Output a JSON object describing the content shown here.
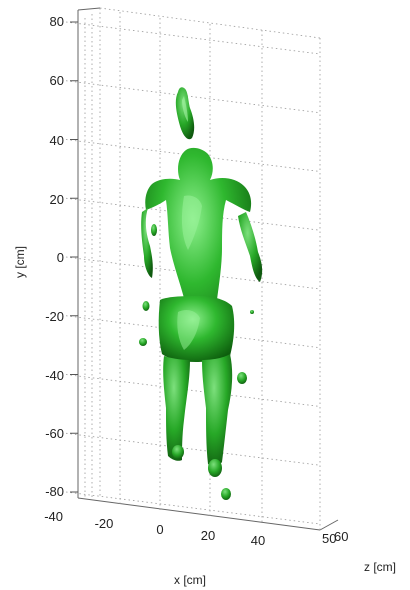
{
  "chart_data": {
    "type": "scatter",
    "subtype": "3d-isosurface",
    "title": "",
    "ylabel": "y [cm]",
    "xlabel": "x [cm]",
    "zlabel": "z [cm]",
    "y_ticks": [
      "80",
      "60",
      "40",
      "20",
      "0",
      "-20",
      "-40",
      "-60",
      "-80"
    ],
    "x_ticks": [
      "-20",
      "0",
      "20",
      "40"
    ],
    "z_ticks": [
      "-40",
      "50",
      "60"
    ],
    "ylim": [
      -85,
      85
    ],
    "xlim": [
      -30,
      50
    ],
    "grid": true,
    "surface_color": "#2fb82f",
    "surface_highlight": "#7de07d",
    "surface_shadow": "#0f6a0f",
    "x_tick_text_0": "-20",
    "x_tick_text_1": "0",
    "x_tick_text_2": "20",
    "x_tick_text_3": "40"
  }
}
